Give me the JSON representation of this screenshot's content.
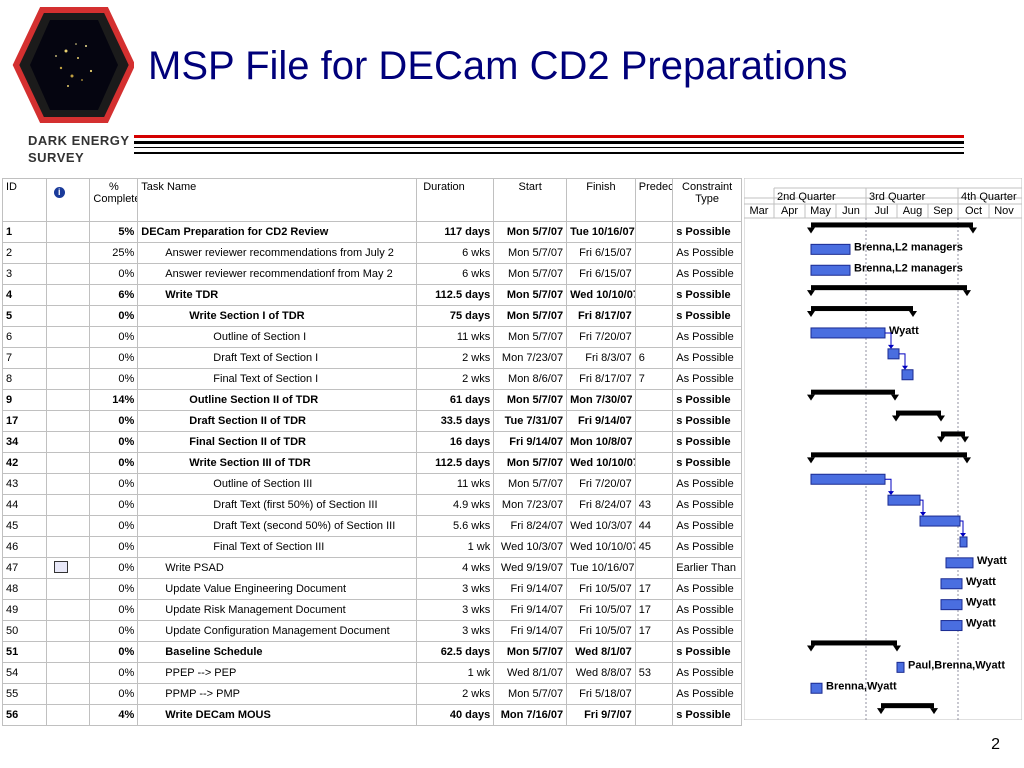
{
  "slide": {
    "title": "MSP File for DECam CD2 Preparations",
    "brand_line1": "DARK ENERGY",
    "brand_line2": "SURVEY",
    "page_number": "2"
  },
  "columns": {
    "id": "ID",
    "pct_line1": "%",
    "pct_line2": "Complete",
    "task": "Task Name",
    "duration": "Duration",
    "start": "Start",
    "finish": "Finish",
    "pred": "Predec",
    "constraint_line1": "Constraint",
    "constraint_line2": "Type"
  },
  "timescale": {
    "quarters": [
      "2nd Quarter",
      "3rd Quarter",
      "4th Quarter"
    ],
    "months": [
      "Mar",
      "Apr",
      "May",
      "Jun",
      "Jul",
      "Aug",
      "Sep",
      "Oct",
      "Nov"
    ]
  },
  "tasks": [
    {
      "id": "1",
      "pct": "5%",
      "name": "DECam Preparation for CD2 Review",
      "indent": 0,
      "dur": "117 days",
      "start": "Mon 5/7/07",
      "finish": "Tue 10/16/07",
      "pred": "",
      "ctype": "s Possible",
      "summary": true,
      "icon": ""
    },
    {
      "id": "2",
      "pct": "25%",
      "name": "Answer reviewer recommendations from July 2",
      "indent": 1,
      "dur": "6 wks",
      "start": "Mon 5/7/07",
      "finish": "Fri 6/15/07",
      "pred": "",
      "ctype": "As Possible",
      "summary": false,
      "icon": "",
      "bar_label": "Brenna,L2 managers"
    },
    {
      "id": "3",
      "pct": "0%",
      "name": "Answer reviewer recommendationf from May 2",
      "indent": 1,
      "dur": "6 wks",
      "start": "Mon 5/7/07",
      "finish": "Fri 6/15/07",
      "pred": "",
      "ctype": "As Possible",
      "summary": false,
      "icon": "",
      "bar_label": "Brenna,L2 managers"
    },
    {
      "id": "4",
      "pct": "6%",
      "name": "Write TDR",
      "indent": 1,
      "dur": "112.5 days",
      "start": "Mon 5/7/07",
      "finish": "Wed 10/10/07",
      "pred": "",
      "ctype": "s Possible",
      "summary": true,
      "icon": ""
    },
    {
      "id": "5",
      "pct": "0%",
      "name": "Write Section I of TDR",
      "indent": 2,
      "dur": "75 days",
      "start": "Mon 5/7/07",
      "finish": "Fri 8/17/07",
      "pred": "",
      "ctype": "s Possible",
      "summary": true,
      "icon": ""
    },
    {
      "id": "6",
      "pct": "0%",
      "name": "Outline of Section I",
      "indent": 3,
      "dur": "11 wks",
      "start": "Mon 5/7/07",
      "finish": "Fri 7/20/07",
      "pred": "",
      "ctype": "As Possible",
      "summary": false,
      "icon": "",
      "bar_label": "Wyatt"
    },
    {
      "id": "7",
      "pct": "0%",
      "name": "Draft Text of Section I",
      "indent": 3,
      "dur": "2 wks",
      "start": "Mon 7/23/07",
      "finish": "Fri 8/3/07",
      "pred": "6",
      "ctype": "As Possible",
      "summary": false,
      "icon": ""
    },
    {
      "id": "8",
      "pct": "0%",
      "name": "Final Text of Section I",
      "indent": 3,
      "dur": "2 wks",
      "start": "Mon 8/6/07",
      "finish": "Fri 8/17/07",
      "pred": "7",
      "ctype": "As Possible",
      "summary": false,
      "icon": ""
    },
    {
      "id": "9",
      "pct": "14%",
      "name": "Outline Section II of TDR",
      "indent": 2,
      "dur": "61 days",
      "start": "Mon 5/7/07",
      "finish": "Mon 7/30/07",
      "pred": "",
      "ctype": "s Possible",
      "summary": true,
      "icon": ""
    },
    {
      "id": "17",
      "pct": "0%",
      "name": "Draft Section II of TDR",
      "indent": 2,
      "dur": "33.5 days",
      "start": "Tue 7/31/07",
      "finish": "Fri 9/14/07",
      "pred": "",
      "ctype": "s Possible",
      "summary": true,
      "icon": ""
    },
    {
      "id": "34",
      "pct": "0%",
      "name": "Final Section II of TDR",
      "indent": 2,
      "dur": "16 days",
      "start": "Fri 9/14/07",
      "finish": "Mon 10/8/07",
      "pred": "",
      "ctype": "s Possible",
      "summary": true,
      "icon": ""
    },
    {
      "id": "42",
      "pct": "0%",
      "name": "Write Section III of TDR",
      "indent": 2,
      "dur": "112.5 days",
      "start": "Mon 5/7/07",
      "finish": "Wed 10/10/07",
      "pred": "",
      "ctype": "s Possible",
      "summary": true,
      "icon": ""
    },
    {
      "id": "43",
      "pct": "0%",
      "name": "Outline of Section III",
      "indent": 3,
      "dur": "11 wks",
      "start": "Mon 5/7/07",
      "finish": "Fri 7/20/07",
      "pred": "",
      "ctype": "As Possible",
      "summary": false,
      "icon": ""
    },
    {
      "id": "44",
      "pct": "0%",
      "name": "Draft Text (first 50%) of Section III",
      "indent": 3,
      "dur": "4.9 wks",
      "start": "Mon 7/23/07",
      "finish": "Fri 8/24/07",
      "pred": "43",
      "ctype": "As Possible",
      "summary": false,
      "icon": ""
    },
    {
      "id": "45",
      "pct": "0%",
      "name": "Draft Text (second 50%) of Section III",
      "indent": 3,
      "dur": "5.6 wks",
      "start": "Fri 8/24/07",
      "finish": "Wed 10/3/07",
      "pred": "44",
      "ctype": "As Possible",
      "summary": false,
      "icon": ""
    },
    {
      "id": "46",
      "pct": "0%",
      "name": "Final Text of Section III",
      "indent": 3,
      "dur": "1 wk",
      "start": "Wed 10/3/07",
      "finish": "Wed 10/10/07",
      "pred": "45",
      "ctype": "As Possible",
      "summary": false,
      "icon": ""
    },
    {
      "id": "47",
      "pct": "0%",
      "name": "Write PSAD",
      "indent": 1,
      "dur": "4 wks",
      "start": "Wed 9/19/07",
      "finish": "Tue 10/16/07",
      "pred": "",
      "ctype": "Earlier Than",
      "summary": false,
      "icon": "calendar",
      "bar_label": "Wyatt"
    },
    {
      "id": "48",
      "pct": "0%",
      "name": "Update Value Engineering Document",
      "indent": 1,
      "dur": "3 wks",
      "start": "Fri 9/14/07",
      "finish": "Fri 10/5/07",
      "pred": "17",
      "ctype": "As Possible",
      "summary": false,
      "icon": "",
      "bar_label": "Wyatt"
    },
    {
      "id": "49",
      "pct": "0%",
      "name": "Update Risk Management Document",
      "indent": 1,
      "dur": "3 wks",
      "start": "Fri 9/14/07",
      "finish": "Fri 10/5/07",
      "pred": "17",
      "ctype": "As Possible",
      "summary": false,
      "icon": "",
      "bar_label": "Wyatt"
    },
    {
      "id": "50",
      "pct": "0%",
      "name": "Update Configuration Management Document",
      "indent": 1,
      "dur": "3 wks",
      "start": "Fri 9/14/07",
      "finish": "Fri 10/5/07",
      "pred": "17",
      "ctype": "As Possible",
      "summary": false,
      "icon": "",
      "bar_label": "Wyatt"
    },
    {
      "id": "51",
      "pct": "0%",
      "name": "Baseline Schedule",
      "indent": 1,
      "dur": "62.5 days",
      "start": "Mon 5/7/07",
      "finish": "Wed 8/1/07",
      "pred": "",
      "ctype": "s Possible",
      "summary": true,
      "icon": ""
    },
    {
      "id": "54",
      "pct": "0%",
      "name": "PPEP --> PEP",
      "indent": 1,
      "dur": "1 wk",
      "start": "Wed 8/1/07",
      "finish": "Wed 8/8/07",
      "pred": "53",
      "ctype": "As Possible",
      "summary": false,
      "icon": "",
      "bar_label": "Paul,Brenna,Wyatt"
    },
    {
      "id": "55",
      "pct": "0%",
      "name": "PPMP --> PMP",
      "indent": 1,
      "dur": "2 wks",
      "start": "Mon 5/7/07",
      "finish": "Fri 5/18/07",
      "pred": "",
      "ctype": "As Possible",
      "summary": false,
      "icon": "",
      "bar_label": "Brenna,Wyatt"
    },
    {
      "id": "56",
      "pct": "4%",
      "name": "Write DECam MOUS",
      "indent": 1,
      "dur": "40 days",
      "start": "Mon 7/16/07",
      "finish": "Fri 9/7/07",
      "pred": "",
      "ctype": "s Possible",
      "summary": true,
      "icon": ""
    }
  ],
  "colors": {
    "title": "#00007a",
    "bar_fill": "#4a6ee0",
    "summary_bar": "#000000",
    "rule_red": "#d40000"
  }
}
